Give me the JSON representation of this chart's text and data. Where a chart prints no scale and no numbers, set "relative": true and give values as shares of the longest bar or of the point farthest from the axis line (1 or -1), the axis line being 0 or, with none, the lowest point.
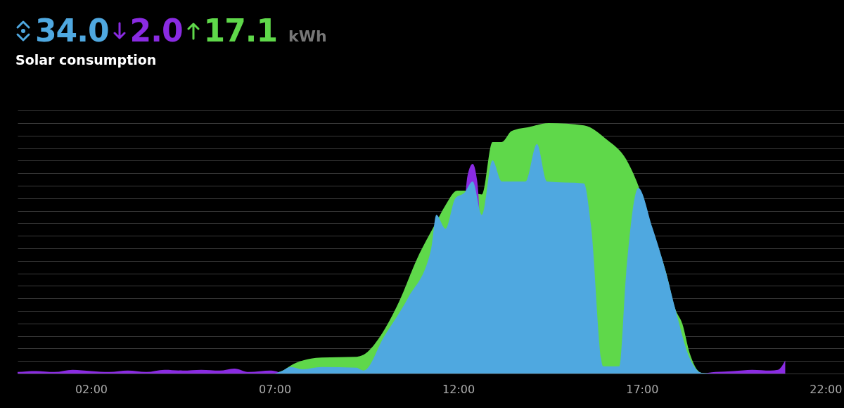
{
  "chart_data": {
    "type": "area",
    "title": "Solar consumption",
    "relative": true,
    "grid": "y",
    "annotations": [
      "34.0",
      "2.0",
      "17.1",
      "kWh"
    ],
    "xlim": [
      0,
      22.5
    ],
    "xticks": [
      {
        "value": 2,
        "label": "02:00"
      },
      {
        "value": 7,
        "label": "07:00"
      },
      {
        "value": 12,
        "label": "12:00"
      },
      {
        "value": 17,
        "label": "17:00"
      },
      {
        "value": 22,
        "label": "22:00"
      }
    ],
    "series": [
      {
        "color": "#4fa8e0",
        "x": [
          7.0,
          7.18,
          7.43,
          7.76,
          8.28,
          9.23,
          9.42,
          9.98,
          10.63,
          11.26,
          11.4,
          11.65,
          11.92,
          12.16,
          12.39,
          12.64,
          12.93,
          13.18,
          13.83,
          14.14,
          14.41,
          15.42,
          15.61,
          15.94,
          16.38,
          16.57,
          16.9,
          17.28,
          17.66,
          17.91,
          18.3,
          18.62,
          19.0
        ],
        "values": [
          0,
          0.009,
          0.026,
          0.017,
          0.026,
          0.023,
          0.012,
          0.148,
          0.302,
          0.497,
          0.633,
          0.578,
          0.7,
          0.721,
          0.767,
          0.633,
          0.851,
          0.767,
          0.767,
          0.916,
          0.767,
          0.759,
          0.593,
          0.029,
          0.029,
          0.401,
          0.741,
          0.584,
          0.401,
          0.256,
          0.061,
          0.003,
          0
        ]
      },
      {
        "color": "#8a2be2",
        "x": [
          0,
          0.5,
          1.0,
          1.5,
          2.0,
          2.5,
          3.0,
          3.5,
          4.0,
          4.5,
          5.0,
          5.5,
          5.9,
          6.3,
          6.9,
          7.3,
          11.9,
          12.25,
          12.39,
          12.52,
          12.8,
          18.6,
          19.0,
          19.5,
          20.0,
          20.5,
          20.7,
          20.9
        ],
        "values": [
          0.006,
          0.01,
          0.006,
          0.015,
          0.01,
          0.006,
          0.012,
          0.006,
          0.015,
          0.012,
          0.015,
          0.012,
          0.02,
          0.006,
          0.012,
          0,
          0,
          0.79,
          0.837,
          0.76,
          0,
          0,
          0.006,
          0.01,
          0.015,
          0.012,
          0.015,
          0.052
        ]
      },
      {
        "color": "#5fd84a",
        "x": [
          6.9,
          7.18,
          7.51,
          8.28,
          9.23,
          9.48,
          9.87,
          10.38,
          10.88,
          11.4,
          11.65,
          11.97,
          12.16,
          12.64,
          12.93,
          13.18,
          13.45,
          13.95,
          14.46,
          15.42,
          16.05,
          16.57,
          16.9,
          17.28,
          17.66,
          17.91,
          18.1,
          18.3,
          18.62,
          19.0
        ],
        "values": [
          0,
          0.009,
          0.038,
          0.064,
          0.067,
          0.081,
          0.148,
          0.285,
          0.459,
          0.605,
          0.672,
          0.73,
          0.73,
          0.715,
          0.924,
          0.924,
          0.968,
          0.985,
          1.0,
          0.991,
          0.933,
          0.855,
          0.75,
          0.576,
          0.401,
          0.256,
          0.198,
          0.081,
          0.003,
          0
        ]
      }
    ]
  }
}
